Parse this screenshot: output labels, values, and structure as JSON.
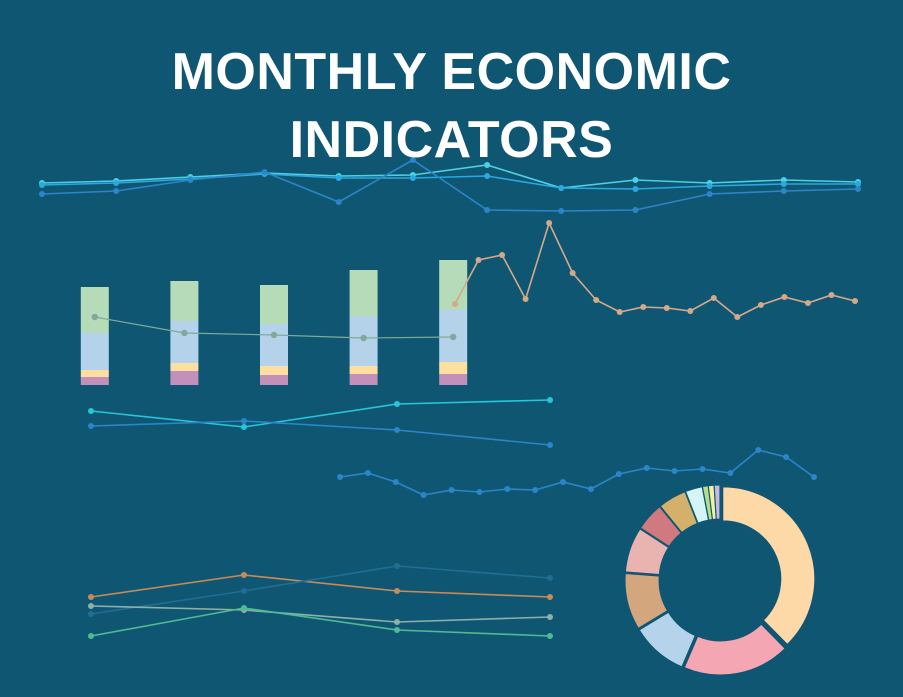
{
  "title": "MONTHLY ECONOMIC INDICATORS",
  "chart_data": [
    {
      "type": "line",
      "ylim": [
        0,
        70
      ],
      "series": [
        {
          "color": "#4dd0e1",
          "values": [
            37,
            39,
            43,
            47,
            44,
            45,
            55,
            32,
            40,
            37,
            40,
            38
          ]
        },
        {
          "color": "#29a9e0",
          "values": [
            35,
            37,
            41,
            46,
            42,
            42,
            44,
            32,
            31,
            34,
            36,
            36
          ]
        },
        {
          "color": "#2a86c8",
          "values": [
            26,
            29,
            40,
            48,
            18,
            60,
            10,
            9,
            10,
            26,
            29,
            31
          ]
        }
      ]
    },
    {
      "type": "bar",
      "ylim": [
        0,
        130
      ],
      "series": [
        {
          "color": "#c48fb8",
          "values": [
            8,
            14,
            10,
            11,
            11
          ]
        },
        {
          "color": "#fddfa0",
          "values": [
            7,
            8,
            9,
            8,
            12
          ]
        },
        {
          "color": "#b4d2ea",
          "values": [
            37,
            42,
            42,
            50,
            52
          ]
        },
        {
          "color": "#b5dbb9",
          "values": [
            46,
            40,
            39,
            46,
            50
          ]
        },
        {
          "type": "line",
          "color": "#7faa9a",
          "values": [
            68,
            52,
            50,
            47,
            48
          ]
        }
      ]
    },
    {
      "type": "line",
      "ylim": [
        0,
        120
      ],
      "series": [
        {
          "color": "#d4a888",
          "values": [
            26,
            70,
            75,
            31,
            107,
            57,
            30,
            18,
            23,
            22,
            19,
            32,
            13,
            25,
            33,
            27,
            35,
            29
          ]
        }
      ]
    },
    {
      "type": "line",
      "ylim": [
        0,
        60
      ],
      "series": [
        {
          "color": "#26c6da",
          "values": [
            39,
            23,
            46,
            50
          ]
        },
        {
          "color": "#2a86c8",
          "values": [
            24,
            29,
            20,
            5
          ]
        }
      ]
    },
    {
      "type": "line",
      "ylim": [
        0,
        60
      ],
      "series": [
        {
          "color": "#2a86c8",
          "values": [
            23,
            27,
            18,
            5,
            10,
            8,
            11,
            10,
            18,
            11,
            26,
            32,
            29,
            31,
            27,
            50,
            43,
            23
          ]
        }
      ]
    },
    {
      "type": "line",
      "ylim": [
        0,
        90
      ],
      "series": [
        {
          "color": "#c98a5a",
          "values": [
            49,
            71,
            55,
            49
          ]
        },
        {
          "color": "#1f6f93",
          "values": [
            32,
            55,
            80,
            68
          ]
        },
        {
          "color": "#8fb0a8",
          "values": [
            40,
            36,
            24,
            29
          ]
        },
        {
          "color": "#4dbb94",
          "values": [
            10,
            38,
            16,
            10
          ]
        }
      ]
    },
    {
      "type": "pie",
      "values": [
        38,
        19,
        10,
        10,
        8,
        5,
        5,
        3,
        1,
        1,
        1
      ],
      "colors": [
        "#fcd9a6",
        "#f4a6b2",
        "#b5d3ea",
        "#d4a67e",
        "#e9b3b0",
        "#d07a80",
        "#d4b06a",
        "#d4f4f6",
        "#b2e08a",
        "#f5f0a0",
        "#c5b9e0"
      ]
    }
  ]
}
